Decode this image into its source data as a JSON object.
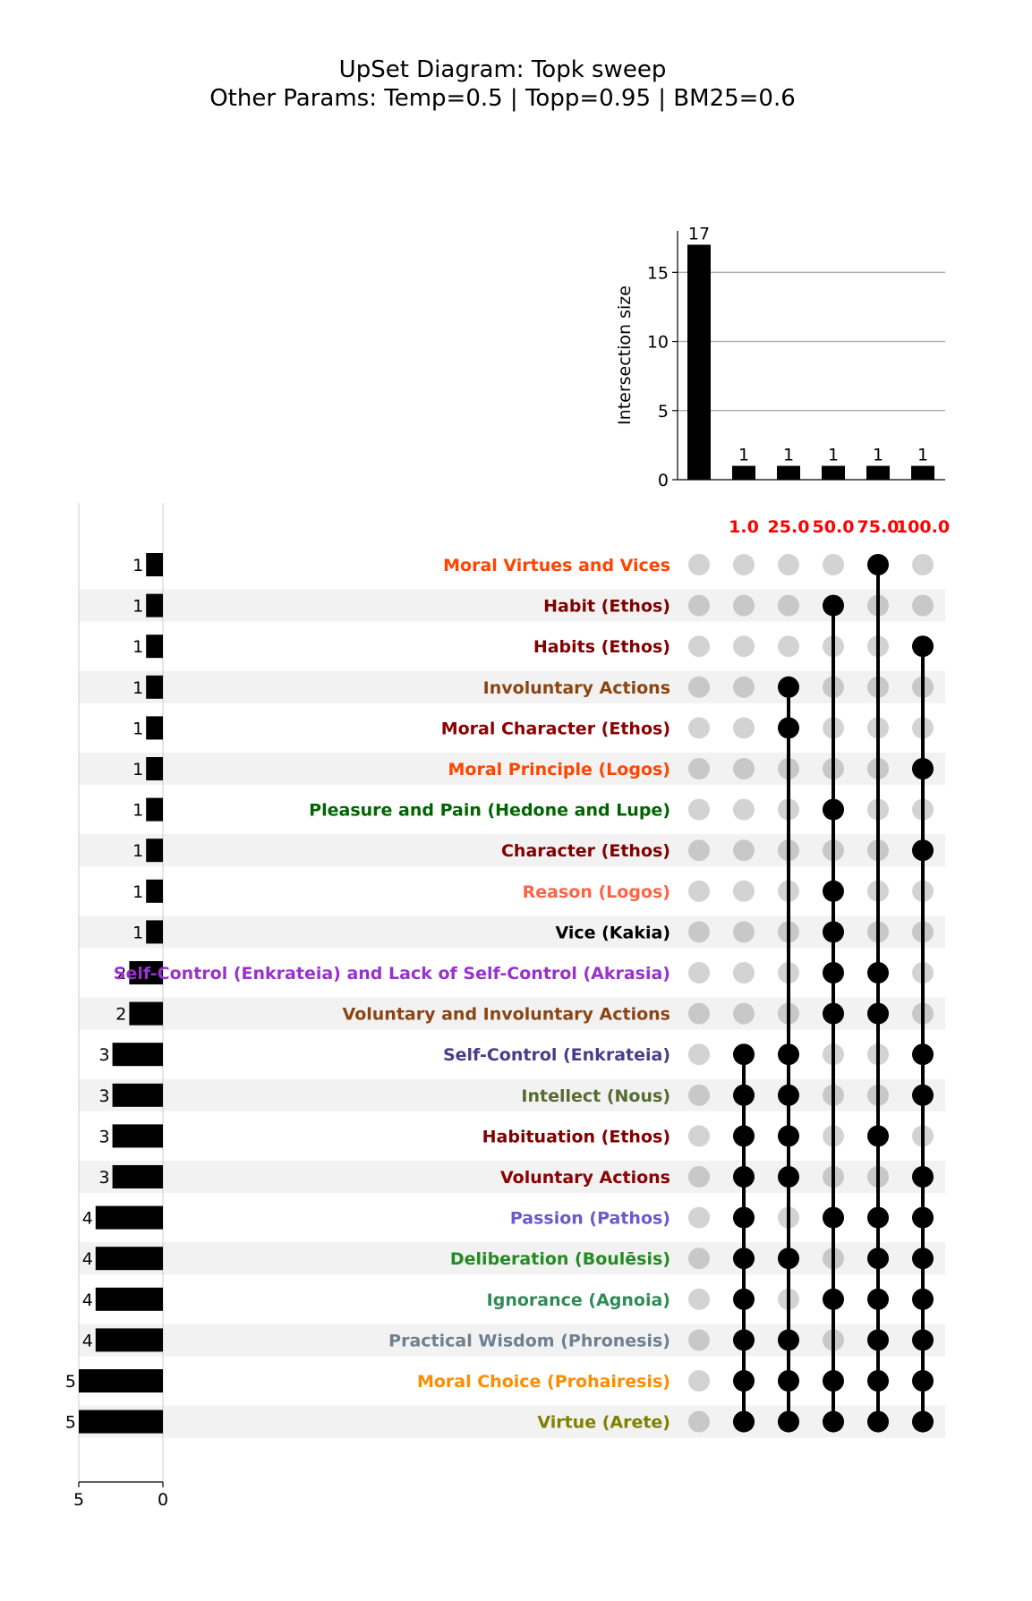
{
  "title": {
    "line1": "UpSet Diagram: Topk sweep",
    "line2": "Other Params: Temp=0.5 | Topp=0.95 | BM25=0.6"
  },
  "chart_data": {
    "type": "upset",
    "intersection_axis": {
      "label": "Intersection size",
      "ylim": [
        0,
        18
      ],
      "ticks": [
        0,
        5,
        10,
        15
      ],
      "grid": true
    },
    "set_size_axis": {
      "xlim": [
        5,
        0
      ],
      "ticks": [
        5,
        0
      ]
    },
    "columns": [
      {
        "header": "",
        "size": 17
      },
      {
        "header": "1.0",
        "size": 1
      },
      {
        "header": "25.0",
        "size": 1
      },
      {
        "header": "50.0",
        "size": 1
      },
      {
        "header": "75.0",
        "size": 1
      },
      {
        "header": "100.0",
        "size": 1
      }
    ],
    "header_color": "#ff0000",
    "rows": [
      {
        "label": "Moral Virtues and Vices",
        "color": "#ff4500",
        "size": 1,
        "members": [
          4
        ]
      },
      {
        "label": "Habit (Ethos)",
        "color": "#800000",
        "size": 1,
        "members": [
          3
        ]
      },
      {
        "label": "Habits (Ethos)",
        "color": "#800000",
        "size": 1,
        "members": [
          5
        ]
      },
      {
        "label": "Involuntary Actions",
        "color": "#8b4513",
        "size": 1,
        "members": [
          2
        ]
      },
      {
        "label": "Moral Character (Ethos)",
        "color": "#8b0000",
        "size": 1,
        "members": [
          2
        ]
      },
      {
        "label": "Moral Principle (Logos)",
        "color": "#ff4500",
        "size": 1,
        "members": [
          5
        ]
      },
      {
        "label": "Pleasure and Pain (Hedone and Lupe)",
        "color": "#006400",
        "size": 1,
        "members": [
          3
        ]
      },
      {
        "label": "Character (Ethos)",
        "color": "#800000",
        "size": 1,
        "members": [
          5
        ]
      },
      {
        "label": "Reason (Logos)",
        "color": "#ff6347",
        "size": 1,
        "members": [
          3
        ]
      },
      {
        "label": "Vice (Kakia)",
        "color": "#000000",
        "size": 1,
        "members": [
          3
        ]
      },
      {
        "label": "Self-Control (Enkrateia) and Lack of Self-Control (Akrasia)",
        "color": "#9932cc",
        "size": 2,
        "members": [
          3,
          4
        ]
      },
      {
        "label": "Voluntary and Involuntary Actions",
        "color": "#8b4513",
        "size": 2,
        "members": [
          3,
          4
        ]
      },
      {
        "label": "Self-Control (Enkrateia)",
        "color": "#483d8b",
        "size": 3,
        "members": [
          1,
          2,
          5
        ]
      },
      {
        "label": "Intellect (Nous)",
        "color": "#556b2f",
        "size": 3,
        "members": [
          1,
          2,
          5
        ]
      },
      {
        "label": "Habituation (Ethos)",
        "color": "#800000",
        "size": 3,
        "members": [
          1,
          2,
          4
        ]
      },
      {
        "label": "Voluntary Actions",
        "color": "#8b0000",
        "size": 3,
        "members": [
          1,
          2,
          5
        ]
      },
      {
        "label": "Passion (Pathos)",
        "color": "#6a5acd",
        "size": 4,
        "members": [
          1,
          3,
          4,
          5
        ]
      },
      {
        "label": "Deliberation (Boulēsis)",
        "color": "#228b22",
        "size": 4,
        "members": [
          1,
          2,
          4,
          5
        ]
      },
      {
        "label": "Ignorance (Agnoia)",
        "color": "#2e8b57",
        "size": 4,
        "members": [
          1,
          3,
          4,
          5
        ]
      },
      {
        "label": "Practical Wisdom (Phronesis)",
        "color": "#708090",
        "size": 4,
        "members": [
          1,
          2,
          4,
          5
        ]
      },
      {
        "label": "Moral Choice (Prohairesis)",
        "color": "#ff8c00",
        "size": 5,
        "members": [
          1,
          2,
          3,
          4,
          5
        ]
      },
      {
        "label": "Virtue (Arete)",
        "color": "#808000",
        "size": 5,
        "members": [
          1,
          2,
          3,
          4,
          5
        ]
      }
    ]
  }
}
